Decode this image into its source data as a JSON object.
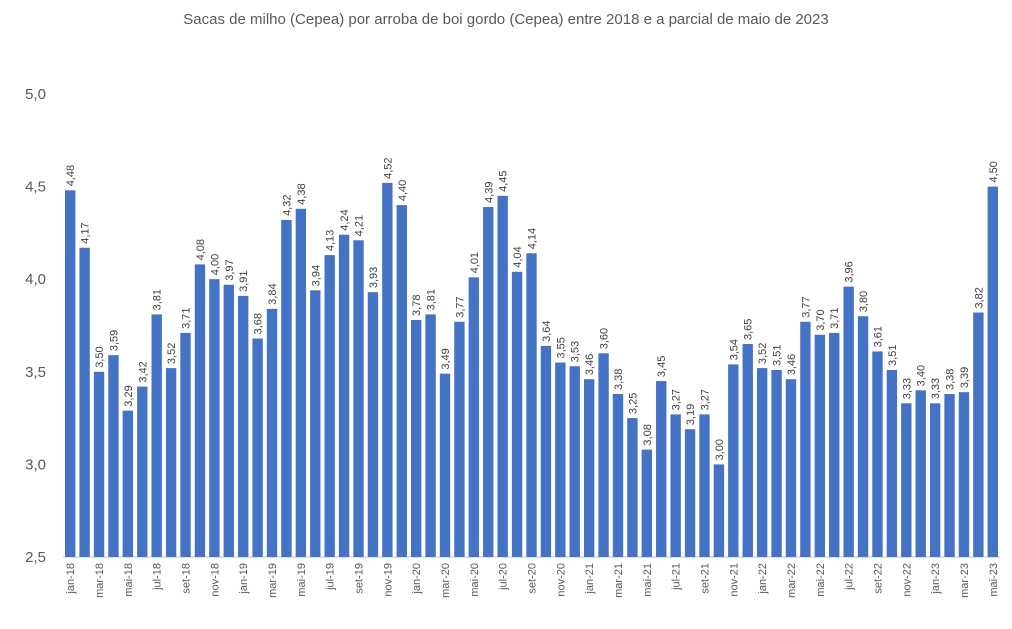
{
  "chart_data": {
    "type": "bar",
    "title": "Sacas de milho (Cepea) por arroba de boi gordo (Cepea) entre 2018 e a parcial de maio de 2023",
    "categories": [
      "jan-18",
      null,
      "mar-18",
      null,
      "mai-18",
      null,
      "jul-18",
      null,
      "set-18",
      null,
      "nov-18",
      null,
      "jan-19",
      null,
      "mar-19",
      null,
      "mai-19",
      null,
      "jul-19",
      null,
      "set-19",
      null,
      "nov-19",
      null,
      "jan-20",
      null,
      "mar-20",
      null,
      "mai-20",
      null,
      "jul-20",
      null,
      "set-20",
      null,
      "nov-20",
      null,
      "jan-21",
      null,
      "mar-21",
      null,
      "mai-21",
      null,
      "jul-21",
      null,
      "set-21",
      null,
      "nov-21",
      null,
      "jan-22",
      null,
      "mar-22",
      null,
      "mai-22",
      null,
      "jul-22",
      null,
      "set-22",
      null,
      "nov-22",
      null,
      "jan-23",
      null,
      "mar-23",
      null,
      "mai-23"
    ],
    "values": [
      4.48,
      4.17,
      3.5,
      3.59,
      3.29,
      3.42,
      3.81,
      3.52,
      3.71,
      4.08,
      4.0,
      3.97,
      3.91,
      3.68,
      3.84,
      4.32,
      4.38,
      3.94,
      4.13,
      4.24,
      4.21,
      3.93,
      4.52,
      4.4,
      3.78,
      3.81,
      3.49,
      3.77,
      4.01,
      4.39,
      4.45,
      4.04,
      4.14,
      3.64,
      3.55,
      3.53,
      3.46,
      3.6,
      3.38,
      3.25,
      3.08,
      3.45,
      3.27,
      3.19,
      3.27,
      3.0,
      3.54,
      3.65,
      3.52,
      3.51,
      3.46,
      3.77,
      3.7,
      3.71,
      3.96,
      3.8,
      3.61,
      3.51,
      3.33,
      3.4,
      3.33,
      3.38,
      3.39,
      3.82,
      4.5
    ],
    "value_labels": [
      "4,48",
      "4,17",
      "3,50",
      "3,59",
      "3,29",
      "3,42",
      "3,81",
      "3,52",
      "3,71",
      "4,08",
      "4,00",
      "3,97",
      "3,91",
      "3,68",
      "3,84",
      "4,32",
      "4,38",
      "3,94",
      "4,13",
      "4,24",
      "4,21",
      "3,93",
      "4,52",
      "4,40",
      "3,78",
      "3,81",
      "3,49",
      "3,77",
      "4,01",
      "4,39",
      "4,45",
      "4,04",
      "4,14",
      "3,64",
      "3,55",
      "3,53",
      "3,46",
      "3,60",
      "3,38",
      "3,25",
      "3,08",
      "3,45",
      "3,27",
      "3,19",
      "3,27",
      "3,00",
      "3,54",
      "3,65",
      "3,52",
      "3,51",
      "3,46",
      "3,77",
      "3,70",
      "3,71",
      "3,96",
      "3,80",
      "3,61",
      "3,51",
      "3,33",
      "3,40",
      "3,33",
      "3,38",
      "3,39",
      "3,82",
      "4,50"
    ],
    "color": "#4472c4",
    "ylim": [
      2.5,
      5.0
    ],
    "yticks": [
      {
        "value": 2.5,
        "label": "2,5"
      },
      {
        "value": 3.0,
        "label": "3,0"
      },
      {
        "value": 3.5,
        "label": "3,5"
      },
      {
        "value": 4.0,
        "label": "4,0"
      },
      {
        "value": 4.5,
        "label": "4,5"
      },
      {
        "value": 5.0,
        "label": "5,0"
      }
    ],
    "grid": false
  }
}
